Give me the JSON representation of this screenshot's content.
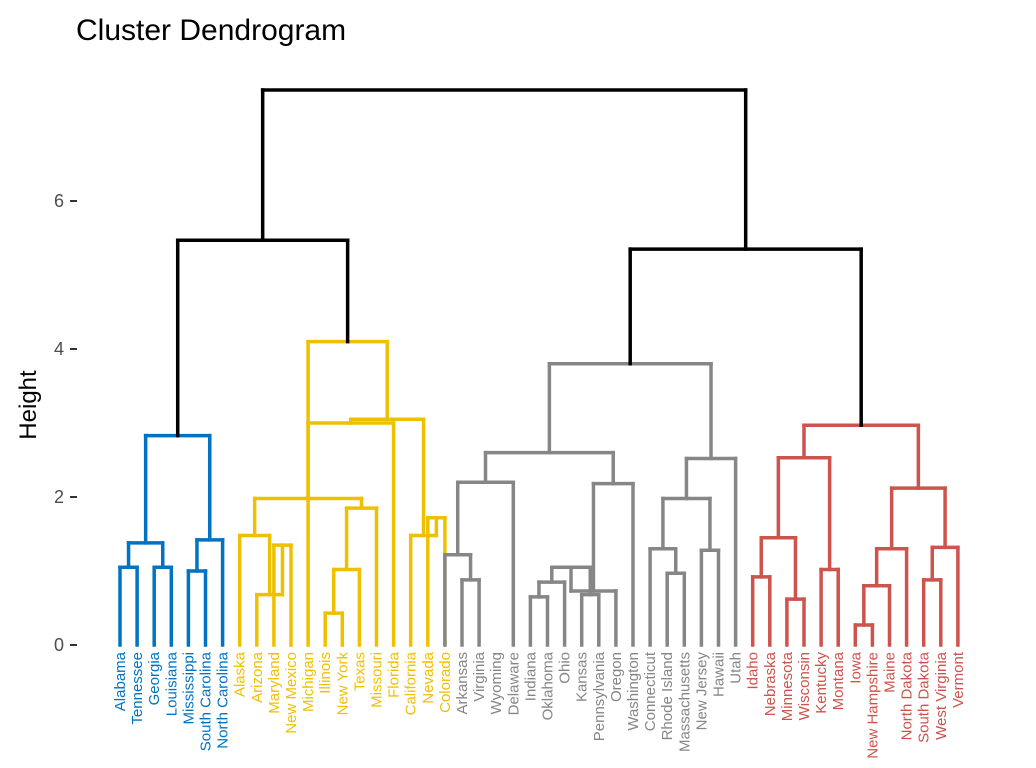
{
  "chart_data": {
    "type": "dendrogram",
    "title": "Cluster Dendrogram",
    "ylabel": "Height",
    "xlabel": "",
    "ylim": [
      0,
      7.5
    ],
    "yticks": [
      0,
      2,
      4,
      6
    ],
    "grid": false,
    "root_color": "#000000",
    "clusters": [
      {
        "color": "#0073C2",
        "leaves": [
          "Alabama",
          "Tennessee",
          "Georgia",
          "Louisiana",
          "Mississippi",
          "South Carolina",
          "North Carolina"
        ]
      },
      {
        "color": "#EFC000",
        "leaves": [
          "Alaska",
          "Arizona",
          "Maryland",
          "New Mexico",
          "Michigan",
          "Illinois",
          "New York",
          "Texas",
          "Missouri",
          "Florida",
          "California",
          "Nevada",
          "Colorado"
        ]
      },
      {
        "color": "#868686",
        "leaves": [
          "Arkansas",
          "Virginia",
          "Wyoming",
          "Delaware",
          "Indiana",
          "Oklahoma",
          "Ohio",
          "Kansas",
          "Pennsylvania",
          "Oregon",
          "Washington",
          "Connecticut",
          "Rhode Island",
          "Massachusetts",
          "New Jersey",
          "Hawaii",
          "Utah"
        ]
      },
      {
        "color": "#CD534C",
        "leaves": [
          "Idaho",
          "Nebraska",
          "Minnesota",
          "Wisconsin",
          "Kentucky",
          "Montana",
          "Iowa",
          "New Hampshire",
          "Maine",
          "North Dakota",
          "South Dakota",
          "West Virginia",
          "Vermont"
        ]
      }
    ],
    "merges": [
      {
        "l": 0,
        "r": 1,
        "h": 1.05,
        "c": 0
      },
      {
        "l": 2,
        "r": 3,
        "h": 1.05,
        "c": 0
      },
      {
        "l": 101,
        "r": 102,
        "h": 1.38,
        "c": 0
      },
      {
        "l": 4,
        "r": 5,
        "h": 1.0,
        "c": 0
      },
      {
        "l": 104,
        "r": 6,
        "h": 1.42,
        "c": 0
      },
      {
        "l": 103,
        "r": 105,
        "h": 2.83,
        "c": 0
      },
      {
        "l": 9,
        "r": 10,
        "h": 1.35,
        "c": 1
      },
      {
        "l": 8,
        "r": 107,
        "h": 0.68,
        "c": 1
      },
      {
        "l": 7,
        "r": 108,
        "h": 1.48,
        "c": 1
      },
      {
        "l": 12,
        "r": 13,
        "h": 0.43,
        "c": 1
      },
      {
        "l": 110,
        "r": 14,
        "h": 1.02,
        "c": 1
      },
      {
        "l": 111,
        "r": 15,
        "h": 1.85,
        "c": 1
      },
      {
        "l": 109,
        "r": 112,
        "h": 1.98,
        "c": 1
      },
      {
        "l": 113,
        "r": 16,
        "h": 3.0,
        "c": 1
      },
      {
        "l": 18,
        "r": 19,
        "h": 1.72,
        "c": 1
      },
      {
        "l": 17,
        "r": 115,
        "h": 1.48,
        "c": 1
      },
      {
        "l": 114,
        "r": 116,
        "h": 3.05,
        "c": 1
      },
      {
        "l": 11,
        "r": 117,
        "h": 4.1,
        "c": 1
      },
      {
        "l": 20,
        "r": 21,
        "h": 0.88,
        "c": 2
      },
      {
        "l": 19,
        "r": 119,
        "h": 1.22,
        "c": 2
      },
      {
        "l": 120,
        "r": 23,
        "h": 2.2,
        "c": 2
      },
      {
        "l": 24,
        "r": 25,
        "h": 0.65,
        "c": 2
      },
      {
        "l": 122,
        "r": 26,
        "h": 0.85,
        "c": 2
      },
      {
        "l": 27,
        "r": 28,
        "h": 0.68,
        "c": 2
      },
      {
        "l": 123,
        "r": 124,
        "h": 1.05,
        "c": 2
      },
      {
        "l": 125,
        "r": 29,
        "h": 0.73,
        "c": 2
      },
      {
        "l": 126,
        "r": 30,
        "h": 2.18,
        "c": 2
      },
      {
        "l": 121,
        "r": 127,
        "h": 2.6,
        "c": 2
      },
      {
        "l": 32,
        "r": 33,
        "h": 0.97,
        "c": 2
      },
      {
        "l": 31,
        "r": 129,
        "h": 1.3,
        "c": 2
      },
      {
        "l": 34,
        "r": 35,
        "h": 1.28,
        "c": 2
      },
      {
        "l": 130,
        "r": 131,
        "h": 1.98,
        "c": 2
      },
      {
        "l": 132,
        "r": 36,
        "h": 2.52,
        "c": 2
      },
      {
        "l": 128,
        "r": 133,
        "h": 3.8,
        "c": 2
      },
      {
        "l": 37,
        "r": 38,
        "h": 0.92,
        "c": 3
      },
      {
        "l": 39,
        "r": 40,
        "h": 0.62,
        "c": 3
      },
      {
        "l": 135,
        "r": 136,
        "h": 1.45,
        "c": 3
      },
      {
        "l": 41,
        "r": 42,
        "h": 1.02,
        "c": 3
      },
      {
        "l": 137,
        "r": 138,
        "h": 2.53,
        "c": 3
      },
      {
        "l": 43,
        "r": 44,
        "h": 0.27,
        "c": 3
      },
      {
        "l": 140,
        "r": 45,
        "h": 0.8,
        "c": 3
      },
      {
        "l": 141,
        "r": 46,
        "h": 1.3,
        "c": 3
      },
      {
        "l": 47,
        "r": 48,
        "h": 0.88,
        "c": 3
      },
      {
        "l": 143,
        "r": 49,
        "h": 1.32,
        "c": 3
      },
      {
        "l": 142,
        "r": 144,
        "h": 2.12,
        "c": 3
      },
      {
        "l": 139,
        "r": 145,
        "h": 2.97,
        "c": 3
      },
      {
        "l": 106,
        "r": 118,
        "h": 5.47,
        "c": -1
      },
      {
        "l": 134,
        "r": 146,
        "h": 5.35,
        "c": -1
      },
      {
        "l": 147,
        "r": 148,
        "h": 7.5,
        "c": -1
      }
    ]
  }
}
